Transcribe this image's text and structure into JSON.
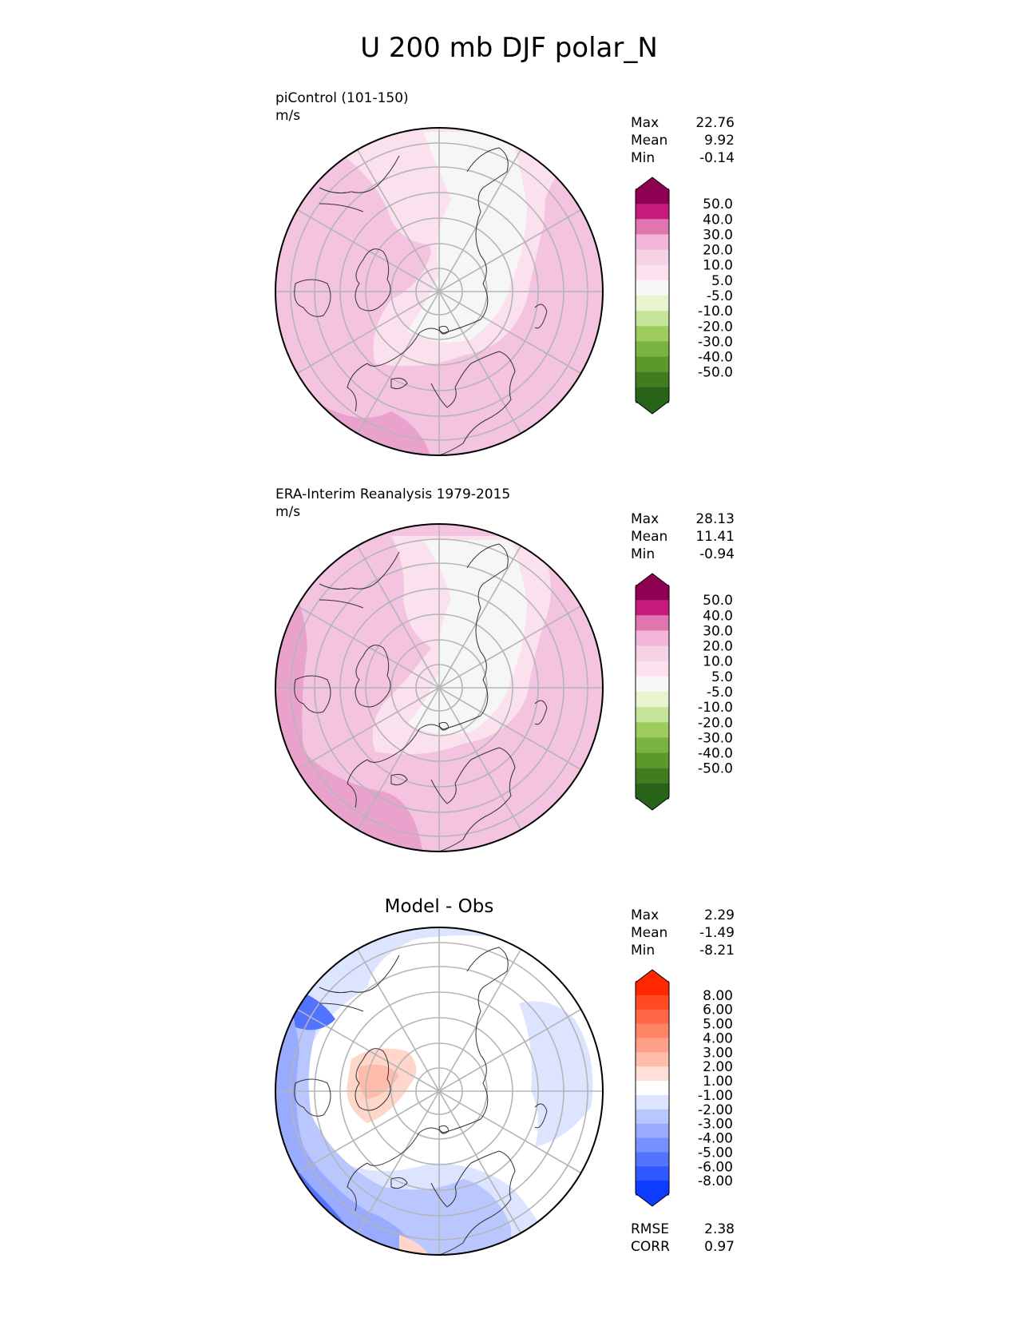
{
  "figure": {
    "title": "U 200 mb DJF polar_N"
  },
  "panels": [
    {
      "id": "test",
      "title": "piControl (101-150)",
      "units": "m/s",
      "stats": [
        {
          "label": "Max",
          "value": "22.76"
        },
        {
          "label": "Mean",
          "value": "9.92"
        },
        {
          "label": "Min",
          "value": "-0.14"
        }
      ],
      "colorbar": {
        "ticks": [
          "50.0",
          "40.0",
          "30.0",
          "20.0",
          "10.0",
          "5.0",
          "-5.0",
          "-10.0",
          "-20.0",
          "-30.0",
          "-40.0",
          "-50.0"
        ],
        "colors": [
          "#8e0152",
          "#c51b7d",
          "#de77ae",
          "#f1b6da",
          "#f7d1e5",
          "#fde0ef",
          "#f7f7f7",
          "#e6f5d0",
          "#c5e49a",
          "#9ccb5e",
          "#7ab33d",
          "#5a9a2a",
          "#3f7d1e",
          "#276419"
        ]
      }
    },
    {
      "id": "reference",
      "title": "ERA-Interim Reanalysis 1979-2015",
      "units": "m/s",
      "stats": [
        {
          "label": "Max",
          "value": "28.13"
        },
        {
          "label": "Mean",
          "value": "11.41"
        },
        {
          "label": "Min",
          "value": "-0.94"
        }
      ],
      "colorbar": {
        "ticks": [
          "50.0",
          "40.0",
          "30.0",
          "20.0",
          "10.0",
          "5.0",
          "-5.0",
          "-10.0",
          "-20.0",
          "-30.0",
          "-40.0",
          "-50.0"
        ],
        "colors": [
          "#8e0152",
          "#c51b7d",
          "#de77ae",
          "#f1b6da",
          "#f7d1e5",
          "#fde0ef",
          "#f7f7f7",
          "#e6f5d0",
          "#c5e49a",
          "#9ccb5e",
          "#7ab33d",
          "#5a9a2a",
          "#3f7d1e",
          "#276419"
        ]
      }
    },
    {
      "id": "difference",
      "title": "Model - Obs",
      "stats": [
        {
          "label": "Max",
          "value": "2.29"
        },
        {
          "label": "Mean",
          "value": "-1.49"
        },
        {
          "label": "Min",
          "value": "-8.21"
        }
      ],
      "colorbar": {
        "ticks": [
          "8.00",
          "6.00",
          "5.00",
          "4.00",
          "3.00",
          "2.00",
          "1.00",
          "-1.00",
          "-2.00",
          "-3.00",
          "-4.00",
          "-5.00",
          "-6.00",
          "-8.00"
        ],
        "colors": [
          "#ff2600",
          "#ff4a22",
          "#ff6644",
          "#ff8566",
          "#ffa088",
          "#ffbcaa",
          "#ffe0d8",
          "#ffffff",
          "#dde4ff",
          "#bac7ff",
          "#98abff",
          "#7590ff",
          "#5273ff",
          "#3057ff",
          "#0d3bff"
        ]
      },
      "metrics": [
        {
          "label": "RMSE",
          "value": "2.38"
        },
        {
          "label": "CORR",
          "value": "0.97"
        }
      ]
    }
  ],
  "colors": {
    "pink_light": "#fde0ef",
    "pink": "#f1c4e0",
    "pink_mid": "#e69ac7",
    "white_band": "#f7f7f7",
    "blue_light": "#dde4ff",
    "blue_mid": "#98abff",
    "blue_dark": "#3057ff",
    "red_light": "#ffd3c6",
    "grid": "#b5b5b5",
    "coast": "#333333"
  }
}
